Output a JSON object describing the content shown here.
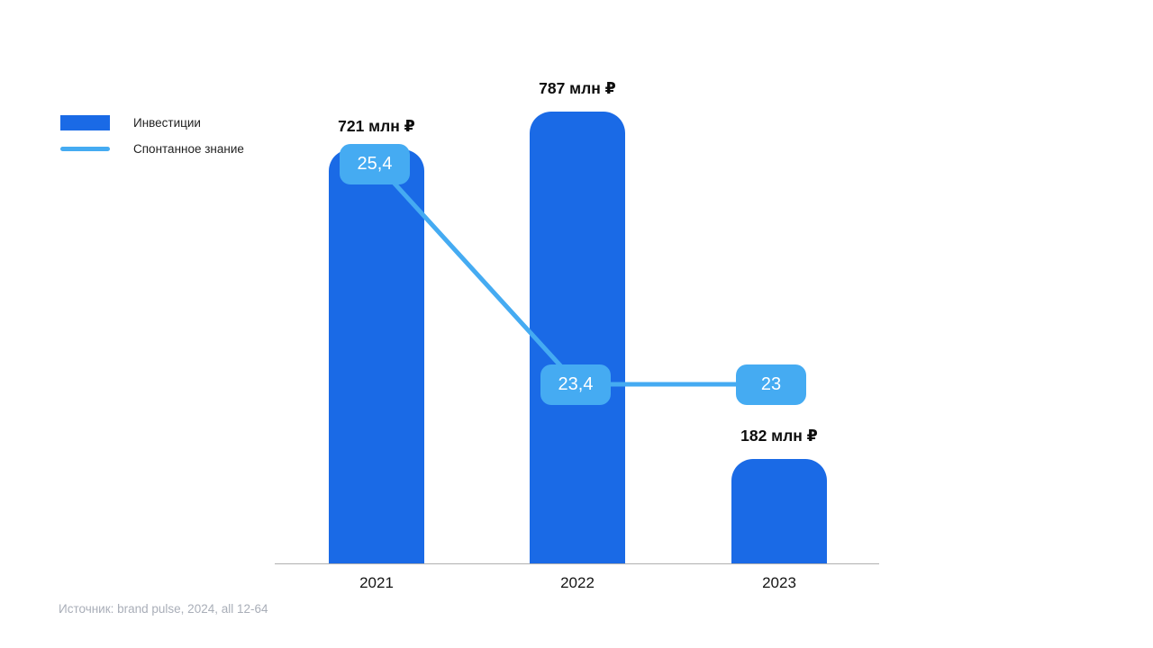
{
  "legend": {
    "items": [
      {
        "label": "Инвестиции"
      },
      {
        "label": "Спонтанное знание"
      }
    ]
  },
  "source": "Источник: brand pulse, 2024, all 12-64",
  "colors": {
    "bar": "#1a6ae6",
    "line": "#45abf2",
    "axis": "#b0b0b0",
    "label_text": "#0d0d0d",
    "badge_text": "#ffffff",
    "source_text": "#a9aeb8",
    "background": "#ffffff"
  },
  "chart_data": {
    "type": "bar+line",
    "categories": [
      "2021",
      "2022",
      "2023"
    ],
    "series": [
      {
        "name": "Инвестиции",
        "type": "bar",
        "unit": "млн ₽",
        "values": [
          721,
          787,
          182
        ],
        "labels": [
          "721 млн ₽",
          "787 млн ₽",
          "182 млн ₽"
        ],
        "color": "#1a6ae6"
      },
      {
        "name": "Спонтанное знание",
        "type": "line",
        "values": [
          25.4,
          23.4,
          23
        ],
        "labels": [
          "25,4",
          "23,4",
          "23"
        ],
        "color": "#45abf2"
      }
    ],
    "title": "",
    "xlabel": "",
    "ylabel": "",
    "grid": false,
    "legend_position": "top-left",
    "source": "Источник: brand pulse, 2024, all 12-64"
  }
}
